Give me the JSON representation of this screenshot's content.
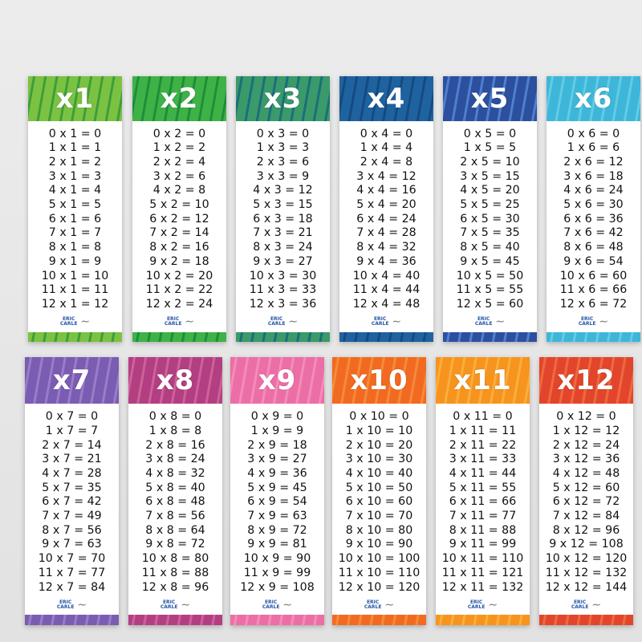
{
  "logo": {
    "line1": "ERIC",
    "line2": "CARLE"
  },
  "cards": [
    {
      "title": "x1",
      "color": "#7cc242",
      "color2": "#3d9e3a",
      "lines": [
        "0 x 1 = 0",
        "1 x 1 = 1",
        "2 x 1 = 2",
        "3 x 1 = 3",
        "4 x 1 = 4",
        "5 x 1 = 5",
        "6 x 1 = 6",
        "7 x 1 = 7",
        "8 x 1 = 8",
        "9 x 1 = 9",
        "10 x 1 = 10",
        "11 x 1 = 11",
        "12 x 1 = 12"
      ]
    },
    {
      "title": "x2",
      "color": "#3fb247",
      "color2": "#1d8f3a",
      "lines": [
        "0 x 2 = 0",
        "1 x 2 = 2",
        "2 x 2 = 4",
        "3 x 2 = 6",
        "4 x 2 = 8",
        "5 x 2 = 10",
        "6 x 2 = 12",
        "7 x 2 = 14",
        "8 x 2 = 16",
        "9 x 2 = 18",
        "10 x 2 = 20",
        "11 x 2 = 22",
        "12 x 2 = 24"
      ]
    },
    {
      "title": "x3",
      "color": "#3a9a6a",
      "color2": "#1d6e7a",
      "lines": [
        "0 x 3 = 0",
        "1 x 3 = 3",
        "2 x 3 = 6",
        "3 x 3 = 9",
        "4 x 3 = 12",
        "5 x 3 = 15",
        "6 x 3 = 18",
        "7 x 3 = 21",
        "8 x 3 = 24",
        "9 x 3 = 27",
        "10 x 3 = 30",
        "11 x 3 = 33",
        "12 x 3 = 36"
      ]
    },
    {
      "title": "x4",
      "color": "#1f62a0",
      "color2": "#154a80",
      "lines": [
        "0 x 4 = 0",
        "1 x 4 = 4",
        "2 x 4 = 8",
        "3 x 4 = 12",
        "4 x 4 = 16",
        "5 x 4 = 20",
        "6 x 4 = 24",
        "7 x 4 = 28",
        "8 x 4 = 32",
        "9 x 4 = 36",
        "10 x 4 = 40",
        "11 x 4 = 44",
        "12 x 4 = 48"
      ]
    },
    {
      "title": "x5",
      "color": "#2c4f9e",
      "color2": "#4f7fcf",
      "lines": [
        "0 x 5 = 0",
        "1 x 5 = 5",
        "2 x 5 = 10",
        "3 x 5 = 15",
        "4 x 5 = 20",
        "5 x 5 = 25",
        "6 x 5 = 30",
        "7 x 5 = 35",
        "8 x 5 = 40",
        "9 x 5 = 45",
        "10 x 5 = 50",
        "11 x 5 = 55",
        "12 x 5 = 60"
      ]
    },
    {
      "title": "x6",
      "color": "#3db6d9",
      "color2": "#63cbe4",
      "lines": [
        "0 x 6 = 0",
        "1 x 6 = 6",
        "2 x 6 = 12",
        "3 x 6 = 18",
        "4 x 6 = 24",
        "5 x 6 = 30",
        "6 x 6 = 36",
        "7 x 6 = 42",
        "8 x 6 = 48",
        "9 x 6 = 54",
        "10 x 6 = 60",
        "11 x 6 = 66",
        "12 x 6 = 72"
      ]
    },
    {
      "title": "x7",
      "color": "#7a5cb2",
      "color2": "#9a7cc8",
      "lines": [
        "0 x 7 = 0",
        "1 x 7 = 7",
        "2 x 7 = 14",
        "3 x 7 = 21",
        "4 x 7 = 28",
        "5 x 7 = 35",
        "6 x 7 = 42",
        "7 x 7 = 49",
        "8 x 7 = 56",
        "9 x 7 = 63",
        "10 x 7 = 70",
        "11 x 7 = 77",
        "12 x 7 = 84"
      ]
    },
    {
      "title": "x8",
      "color": "#b13f82",
      "color2": "#d0609a",
      "lines": [
        "0 x 8 = 0",
        "1 x 8 = 8",
        "2 x 8 = 16",
        "3 x 8 = 24",
        "4 x 8 = 32",
        "5 x 8 = 40",
        "6 x 8 = 48",
        "7 x 8 = 56",
        "8 x 8 = 64",
        "9 x 8 = 72",
        "10 x 8 = 80",
        "11 x 8 = 88",
        "12 x 8 = 96"
      ]
    },
    {
      "title": "x9",
      "color": "#ec6ea6",
      "color2": "#f38cb8",
      "lines": [
        "0 x 9 = 0",
        "1 x 9 = 9",
        "2 x 9 = 18",
        "3 x 9 = 27",
        "4 x 9 = 36",
        "5 x 9 = 45",
        "6 x 9 = 54",
        "7 x 9 = 63",
        "8 x 9 = 72",
        "9 x 9 = 81",
        "10 x 9 = 90",
        "11 x 9 = 99",
        "12 x 9 = 108"
      ]
    },
    {
      "title": "x10",
      "color": "#f26a21",
      "color2": "#f58a3a",
      "lines": [
        "0 x 10 = 0",
        "1 x 10 = 10",
        "2 x 10 = 20",
        "3 x 10 = 30",
        "4 x 10 = 40",
        "5 x 10 = 50",
        "6 x 10 = 60",
        "7 x 10 = 70",
        "8 x 10 = 80",
        "9 x 10 = 90",
        "10 x 10 = 100",
        "11 x 10 = 110",
        "12 x 10 = 120"
      ]
    },
    {
      "title": "x11",
      "color": "#f7941d",
      "color2": "#f9ae3e",
      "lines": [
        "0 x 11 = 0",
        "1 x 11 = 11",
        "2 x 11 = 22",
        "3 x 11 = 33",
        "4 x 11 = 44",
        "5 x 11 = 55",
        "6 x 11 = 66",
        "7 x 11 = 77",
        "8 x 11 = 88",
        "9 x 11 = 99",
        "10 x 11 = 110",
        "11 x 11 = 121",
        "12 x 11 = 132"
      ]
    },
    {
      "title": "x12",
      "color": "#e2452c",
      "color2": "#ee6a3e",
      "lines": [
        "0 x 12 = 0",
        "1 x 12 = 12",
        "2 x 12 = 24",
        "3 x 12 = 36",
        "4 x 12 = 48",
        "5 x 12 = 60",
        "6 x 12 = 72",
        "7 x 12 = 84",
        "8 x 12 = 96",
        "9 x 12 = 108",
        "10 x 12 = 120",
        "11 x 12 = 132",
        "12 x 12 = 144"
      ]
    }
  ]
}
